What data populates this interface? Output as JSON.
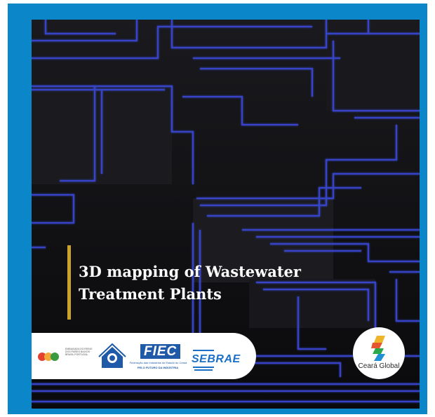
{
  "headline": {
    "line1": "3D mapping of Wastewater",
    "line2": "Treatment Plants"
  },
  "sponsors": {
    "rbp_text": "EMBAIXADA DO REINO DOS PAÍSES BAIXOS · BRASIL PORTUGAL",
    "fiec_logo": "FIEC",
    "fiec_subtitle": "Federação das Indústrias do Estado do Ceará",
    "fiec_tagline": "PELO FUTURO DA INDÚSTRIA",
    "sebrae_logo": "SEBRAE"
  },
  "badge": {
    "label": "Ceará Global"
  },
  "colors": {
    "frame": "#0b86c9",
    "background": "#0d0d10",
    "circuit": "#3a48d8",
    "accent_bar": "#caa22c"
  }
}
